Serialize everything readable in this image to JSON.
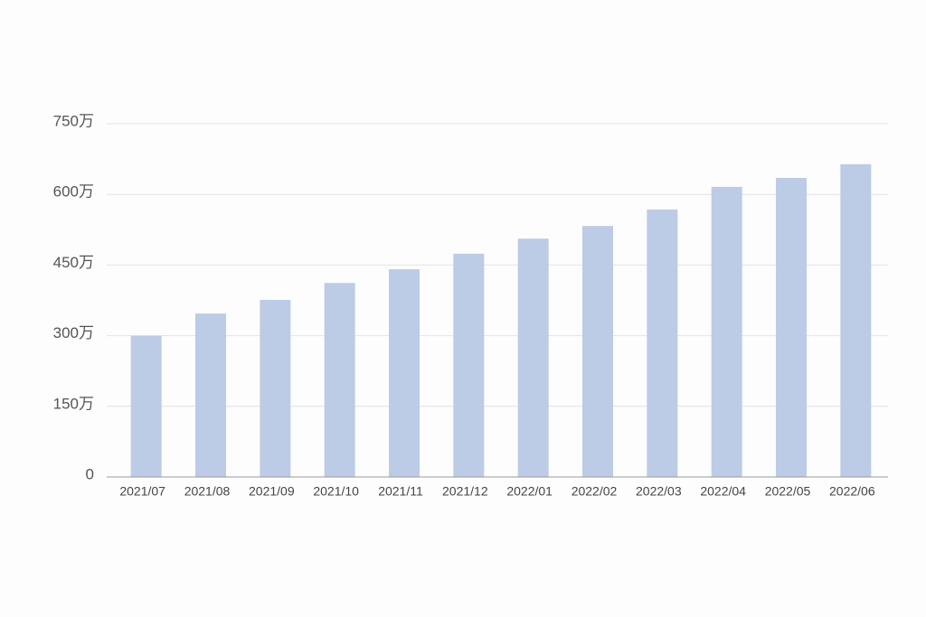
{
  "chart_data": {
    "type": "bar",
    "categories": [
      "2021/07",
      "2021/08",
      "2021/09",
      "2021/10",
      "2021/11",
      "2021/12",
      "2022/01",
      "2022/02",
      "2022/03",
      "2022/04",
      "2022/05",
      "2022/06"
    ],
    "values": [
      300,
      347,
      376,
      412,
      441,
      474,
      506,
      533,
      568,
      616,
      635,
      664
    ],
    "color": "#bccbe6",
    "ylim": [
      0,
      750
    ],
    "yticks": [
      0,
      {
        "value": 150,
        "label": "150万"
      },
      {
        "value": 300,
        "label": "300万"
      },
      {
        "value": 450,
        "label": "450万"
      },
      {
        "value": 600,
        "label": "600万"
      },
      {
        "value": 750,
        "label": "750万"
      }
    ],
    "grid": true
  }
}
